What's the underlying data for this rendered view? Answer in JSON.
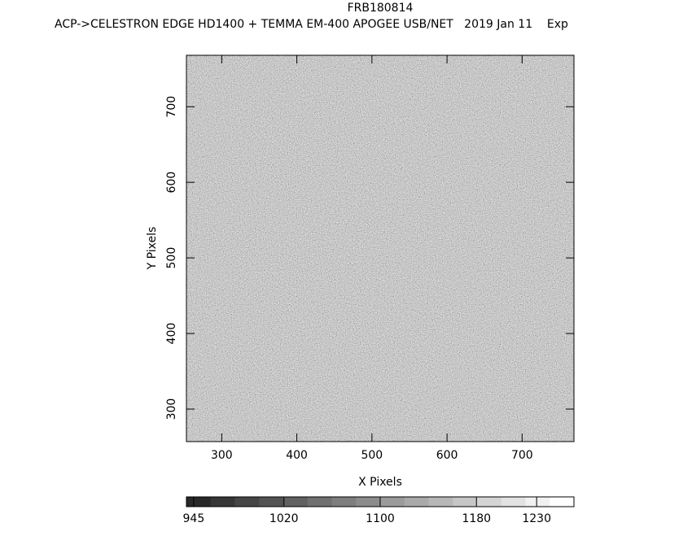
{
  "chart_data": {
    "type": "image",
    "title": "FRB180814",
    "subtitle": "ACP->CELESTRON EDGE HD1400 + TEMMA EM-400 APOGEE USB/NET   2019 Jan 11    Exp",
    "x_label": "X Pixels",
    "y_label": "Y Pixels",
    "xlim": [
      253,
      769
    ],
    "ylim": [
      257,
      768
    ],
    "xticks": [
      300,
      400,
      500,
      600,
      700
    ],
    "yticks": [
      300,
      400,
      500,
      600,
      700
    ],
    "colorbar": {
      "lim": [
        939,
        1261
      ],
      "ticks": [
        945,
        1020,
        1100,
        1180,
        1230
      ]
    }
  }
}
